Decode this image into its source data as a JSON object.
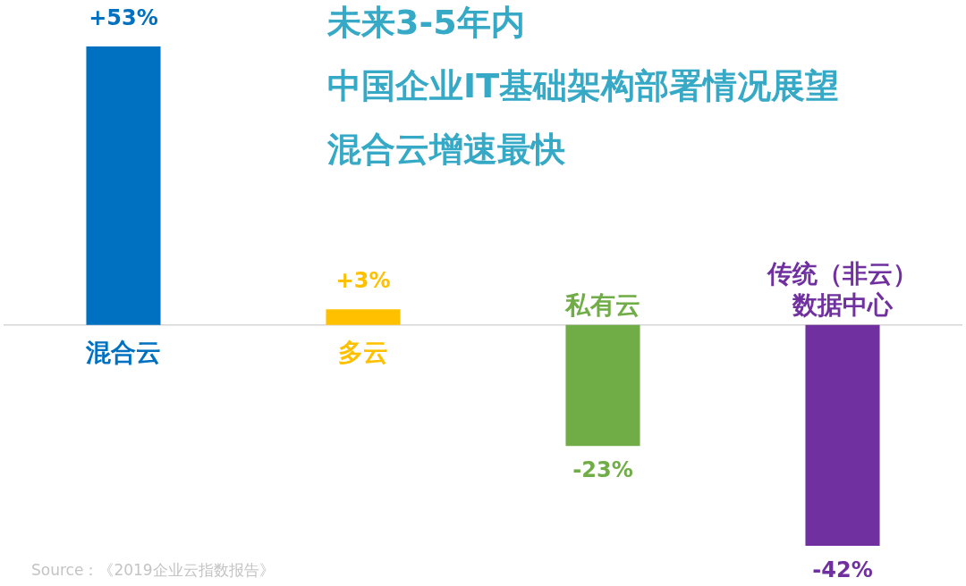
{
  "chart_data": {
    "type": "bar",
    "title": "未来3-5年内",
    "subtitle": "中国企业IT基础架构部署情况展望混合云增速最快",
    "categories": [
      "混合云",
      "多云",
      "私有云",
      "传统（非云）数据中心"
    ],
    "values": [
      53,
      3,
      -23,
      -42
    ],
    "colors": [
      "#0070c0",
      "#ffc000",
      "#70ad47",
      "#7030a0"
    ],
    "value_labels": [
      "+53%",
      "+3%",
      "-23%",
      "-42%"
    ],
    "annotations": [
      "Source：《2019企业云指数报告》"
    ]
  }
}
